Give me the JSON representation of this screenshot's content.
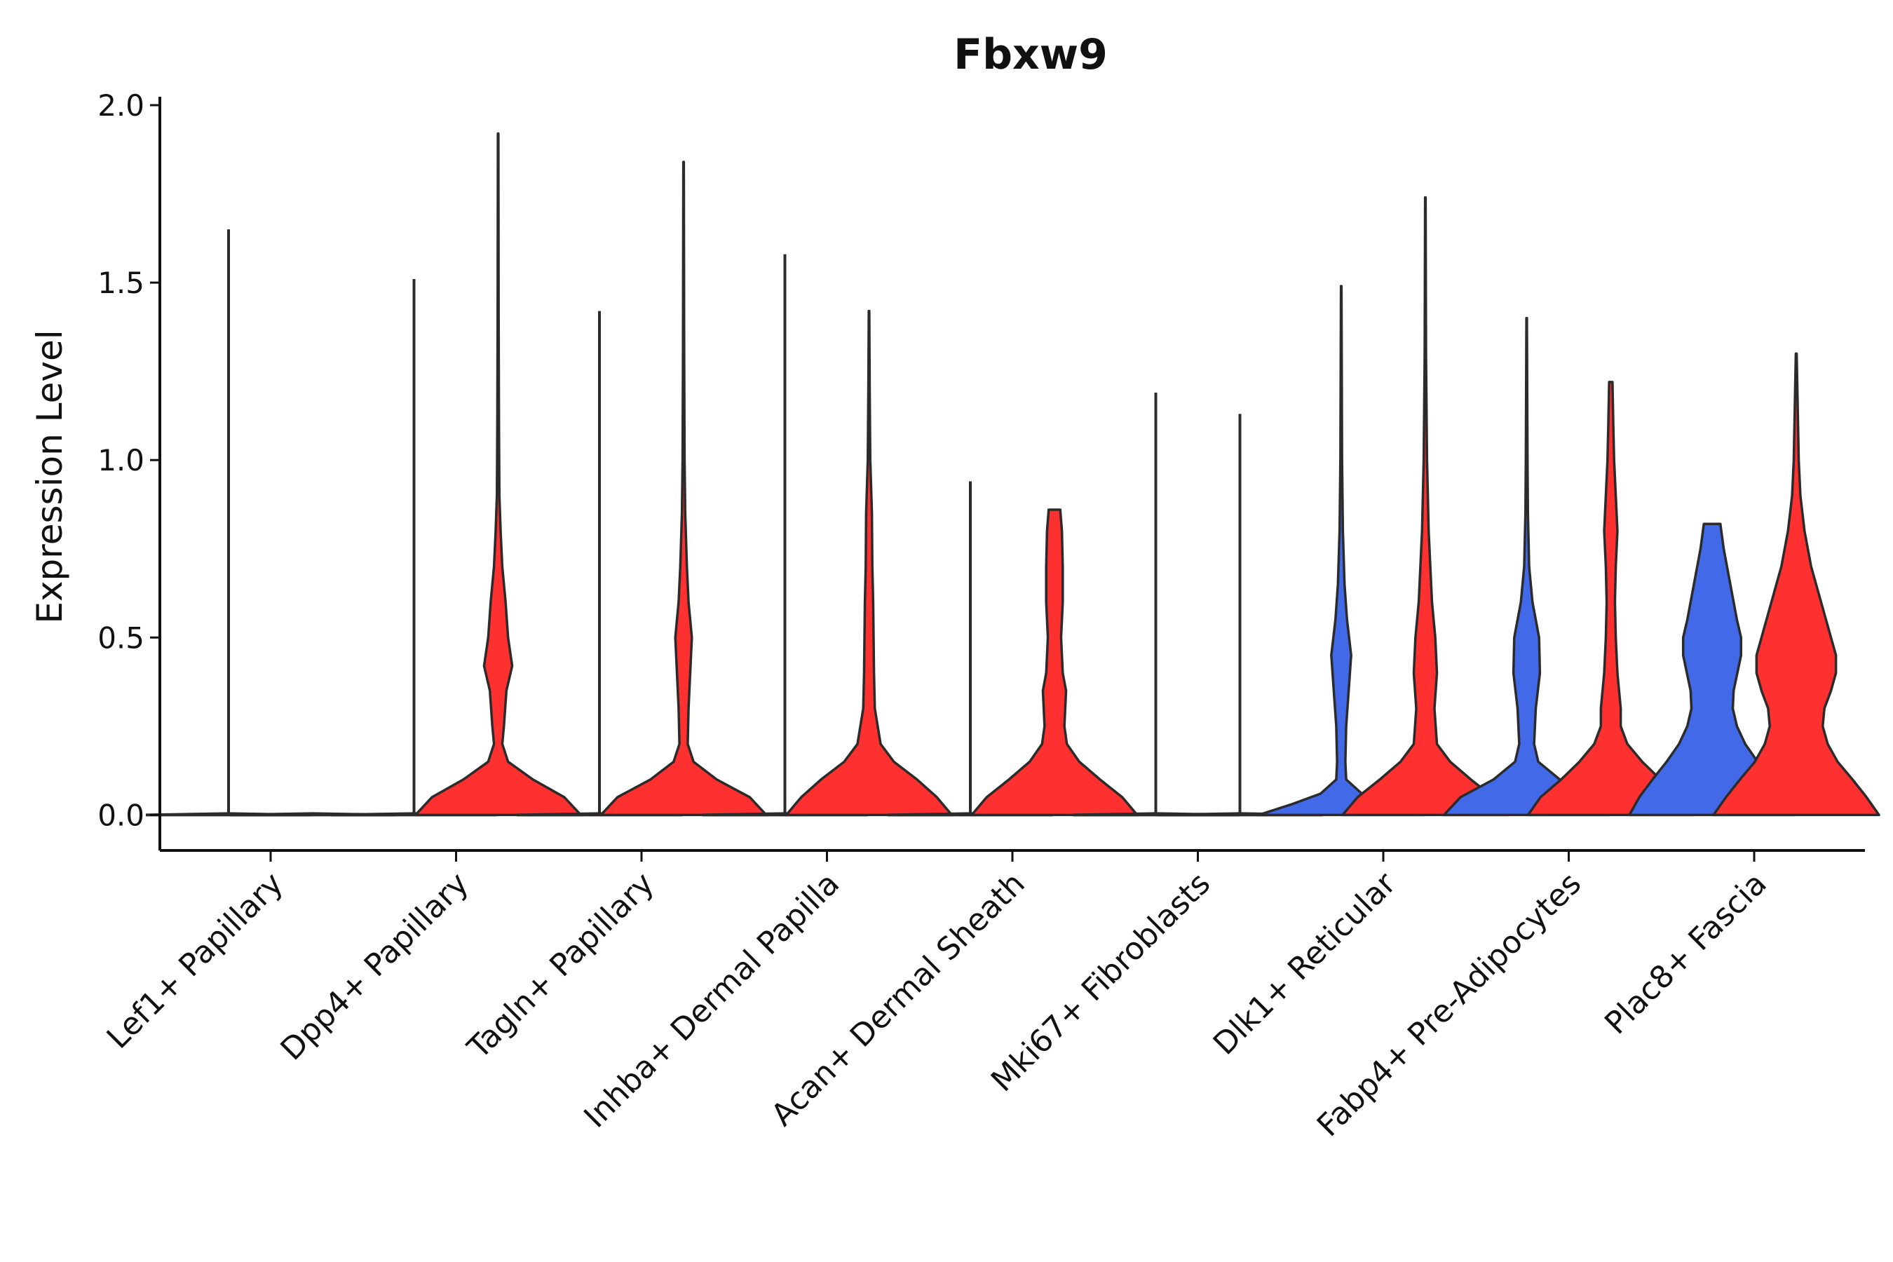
{
  "chart_data": {
    "type": "violin",
    "title": "Fbxw9",
    "xlabel": "",
    "ylabel": "Expression Level",
    "ylim": [
      -0.1,
      2.0
    ],
    "yticks": [
      "0.0",
      "0.5",
      "1.0",
      "1.5",
      "2.0"
    ],
    "ytick_values": [
      0.0,
      0.5,
      1.0,
      1.5,
      2.0
    ],
    "grid": false,
    "legend": "none",
    "colors": {
      "flat": "#2b2b2b",
      "blue": "#4169e8",
      "red": "#ff3030",
      "outline": "#2b2b2b",
      "axis": "#111111"
    },
    "categories": [
      "Lef1+ Papillary",
      "Dpp4+ Papillary",
      "Tagln+ Papillary",
      "Inhba+ Dermal Papilla",
      "Acan+ Dermal Sheath",
      "Mki67+ Fibroblasts",
      "Dlk1+ Reticular",
      "Fabp4+ Pre-Adipocytes",
      "Plac8+ Fascia"
    ],
    "groups": [
      {
        "category": "Lef1+ Papillary",
        "violins": [
          {
            "fill": "flat",
            "max": 1.65,
            "profile": []
          },
          {
            "fill": "flat",
            "max": 0.0,
            "profile": []
          }
        ]
      },
      {
        "category": "Dpp4+ Papillary",
        "violins": [
          {
            "fill": "flat",
            "max": 1.51,
            "profile": []
          },
          {
            "fill": "red",
            "max": 1.92,
            "profile": [
              [
                0,
                1
              ],
              [
                0.05,
                0.8
              ],
              [
                0.1,
                0.42
              ],
              [
                0.15,
                0.12
              ],
              [
                0.2,
                0.05
              ],
              [
                0.25,
                0.07
              ],
              [
                0.35,
                0.1
              ],
              [
                0.42,
                0.17
              ],
              [
                0.5,
                0.12
              ],
              [
                0.6,
                0.09
              ],
              [
                0.7,
                0.05
              ],
              [
                0.8,
                0.03
              ],
              [
                0.9,
                0.015
              ],
              [
                1.1,
                0.01
              ],
              [
                1.4,
                0.006
              ],
              [
                1.92,
                0.003
              ]
            ]
          }
        ]
      },
      {
        "category": "Tagln+ Papillary",
        "violins": [
          {
            "fill": "flat",
            "max": 1.42,
            "profile": []
          },
          {
            "fill": "red",
            "max": 1.84,
            "profile": [
              [
                0,
                1
              ],
              [
                0.05,
                0.8
              ],
              [
                0.1,
                0.4
              ],
              [
                0.15,
                0.12
              ],
              [
                0.2,
                0.05
              ],
              [
                0.3,
                0.06
              ],
              [
                0.4,
                0.08
              ],
              [
                0.5,
                0.1
              ],
              [
                0.6,
                0.06
              ],
              [
                0.7,
                0.04
              ],
              [
                0.85,
                0.02
              ],
              [
                1.0,
                0.012
              ],
              [
                1.3,
                0.007
              ],
              [
                1.84,
                0.003
              ]
            ]
          }
        ]
      },
      {
        "category": "Inhba+ Dermal Papilla",
        "violins": [
          {
            "fill": "flat",
            "max": 1.58,
            "profile": []
          },
          {
            "fill": "red",
            "max": 1.42,
            "profile": [
              [
                0,
                1
              ],
              [
                0.05,
                0.82
              ],
              [
                0.1,
                0.58
              ],
              [
                0.15,
                0.3
              ],
              [
                0.2,
                0.14
              ],
              [
                0.3,
                0.07
              ],
              [
                0.4,
                0.06
              ],
              [
                0.5,
                0.055
              ],
              [
                0.6,
                0.05
              ],
              [
                0.7,
                0.04
              ],
              [
                0.85,
                0.035
              ],
              [
                1.0,
                0.015
              ],
              [
                1.2,
                0.008
              ],
              [
                1.42,
                0.003
              ]
            ]
          }
        ]
      },
      {
        "category": "Acan+ Dermal Sheath",
        "violins": [
          {
            "fill": "flat",
            "max": 0.94,
            "profile": []
          },
          {
            "fill": "red",
            "max": 0.86,
            "profile": [
              [
                0,
                1
              ],
              [
                0.05,
                0.82
              ],
              [
                0.1,
                0.55
              ],
              [
                0.15,
                0.3
              ],
              [
                0.2,
                0.15
              ],
              [
                0.25,
                0.12
              ],
              [
                0.3,
                0.13
              ],
              [
                0.35,
                0.14
              ],
              [
                0.4,
                0.1
              ],
              [
                0.5,
                0.08
              ],
              [
                0.6,
                0.1
              ],
              [
                0.7,
                0.1
              ],
              [
                0.8,
                0.09
              ],
              [
                0.86,
                0.07
              ]
            ]
          }
        ]
      },
      {
        "category": "Mki67+ Fibroblasts",
        "violins": [
          {
            "fill": "flat",
            "max": 1.19,
            "profile": []
          },
          {
            "fill": "flat",
            "max": 1.13,
            "profile": []
          }
        ]
      },
      {
        "category": "Dlk1+ Reticular",
        "violins": [
          {
            "fill": "blue",
            "max": 1.49,
            "profile": [
              [
                0,
                1
              ],
              [
                0.03,
                0.6
              ],
              [
                0.06,
                0.25
              ],
              [
                0.1,
                0.06
              ],
              [
                0.15,
                0.05
              ],
              [
                0.25,
                0.06
              ],
              [
                0.35,
                0.09
              ],
              [
                0.45,
                0.12
              ],
              [
                0.55,
                0.07
              ],
              [
                0.65,
                0.04
              ],
              [
                0.8,
                0.02
              ],
              [
                1.0,
                0.01
              ],
              [
                1.49,
                0.003
              ]
            ]
          },
          {
            "fill": "red",
            "max": 1.74,
            "profile": [
              [
                0,
                1
              ],
              [
                0.05,
                0.82
              ],
              [
                0.1,
                0.55
              ],
              [
                0.15,
                0.3
              ],
              [
                0.2,
                0.14
              ],
              [
                0.3,
                0.11
              ],
              [
                0.4,
                0.14
              ],
              [
                0.5,
                0.12
              ],
              [
                0.6,
                0.08
              ],
              [
                0.7,
                0.06
              ],
              [
                0.8,
                0.04
              ],
              [
                1.0,
                0.02
              ],
              [
                1.3,
                0.008
              ],
              [
                1.74,
                0.003
              ]
            ]
          }
        ]
      },
      {
        "category": "Fabp4+ Pre-Adipocytes",
        "violins": [
          {
            "fill": "blue",
            "max": 1.4,
            "profile": [
              [
                0,
                1
              ],
              [
                0.05,
                0.8
              ],
              [
                0.1,
                0.4
              ],
              [
                0.15,
                0.14
              ],
              [
                0.2,
                0.09
              ],
              [
                0.3,
                0.11
              ],
              [
                0.4,
                0.16
              ],
              [
                0.5,
                0.15
              ],
              [
                0.6,
                0.07
              ],
              [
                0.7,
                0.03
              ],
              [
                0.85,
                0.015
              ],
              [
                1.0,
                0.01
              ],
              [
                1.4,
                0.003
              ]
            ]
          },
          {
            "fill": "red",
            "max": 1.22,
            "profile": [
              [
                0,
                1
              ],
              [
                0.05,
                0.85
              ],
              [
                0.1,
                0.6
              ],
              [
                0.15,
                0.38
              ],
              [
                0.2,
                0.2
              ],
              [
                0.25,
                0.12
              ],
              [
                0.3,
                0.12
              ],
              [
                0.4,
                0.08
              ],
              [
                0.5,
                0.06
              ],
              [
                0.6,
                0.05
              ],
              [
                0.7,
                0.06
              ],
              [
                0.8,
                0.08
              ],
              [
                0.9,
                0.06
              ],
              [
                1.0,
                0.04
              ],
              [
                1.1,
                0.03
              ],
              [
                1.22,
                0.02
              ]
            ]
          }
        ]
      },
      {
        "category": "Plac8+ Fascia",
        "violins": [
          {
            "fill": "blue",
            "max": 0.82,
            "profile": [
              [
                0,
                1
              ],
              [
                0.05,
                0.88
              ],
              [
                0.1,
                0.72
              ],
              [
                0.15,
                0.55
              ],
              [
                0.2,
                0.4
              ],
              [
                0.25,
                0.3
              ],
              [
                0.3,
                0.25
              ],
              [
                0.35,
                0.26
              ],
              [
                0.45,
                0.35
              ],
              [
                0.5,
                0.35
              ],
              [
                0.55,
                0.3
              ],
              [
                0.65,
                0.22
              ],
              [
                0.75,
                0.14
              ],
              [
                0.82,
                0.1
              ]
            ]
          },
          {
            "fill": "red",
            "max": 1.3,
            "profile": [
              [
                0,
                1
              ],
              [
                0.05,
                0.85
              ],
              [
                0.1,
                0.68
              ],
              [
                0.15,
                0.5
              ],
              [
                0.2,
                0.38
              ],
              [
                0.25,
                0.32
              ],
              [
                0.3,
                0.34
              ],
              [
                0.35,
                0.42
              ],
              [
                0.4,
                0.48
              ],
              [
                0.45,
                0.48
              ],
              [
                0.5,
                0.42
              ],
              [
                0.6,
                0.3
              ],
              [
                0.7,
                0.18
              ],
              [
                0.8,
                0.1
              ],
              [
                0.9,
                0.05
              ],
              [
                1.0,
                0.03
              ],
              [
                1.3,
                0.005
              ]
            ]
          }
        ]
      }
    ]
  }
}
